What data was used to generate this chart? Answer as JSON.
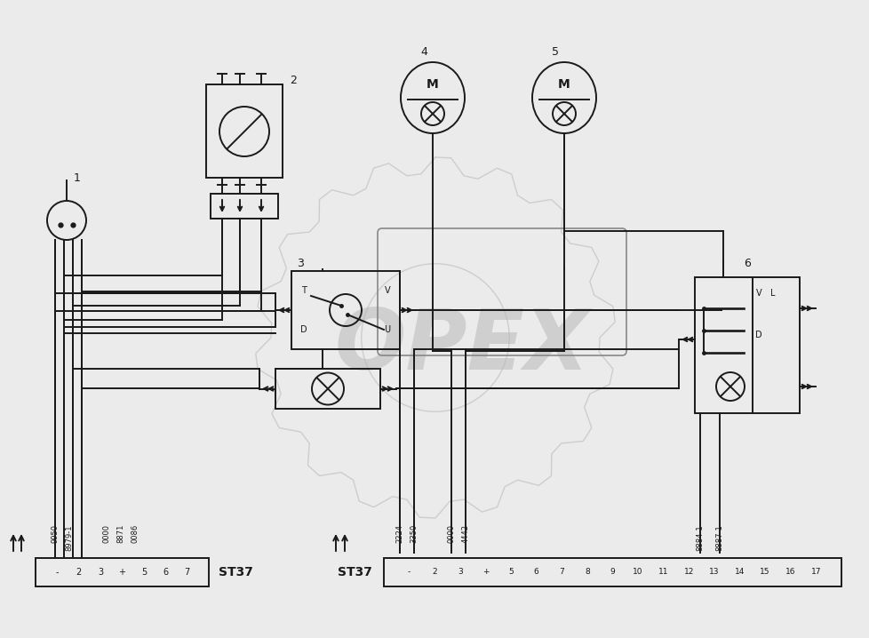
{
  "bg_color": "#ebebeb",
  "line_color": "#1a1a1a",
  "watermark_text": "OPEX",
  "connector_left_label": "ST37",
  "connector_right_label": "ST37",
  "connector_left_pins": [
    "-",
    "2",
    "3",
    "+",
    "5",
    "6",
    "7"
  ],
  "connector_right_pins": [
    "-",
    "2",
    "3",
    "+",
    "5",
    "6",
    "7",
    "8",
    "9",
    "10",
    "11",
    "12",
    "13",
    "14",
    "15",
    "16",
    "17"
  ],
  "wire_labels_left": [
    [
      "9950",
      62
    ],
    [
      "8979-1",
      78
    ],
    [
      "0000",
      120
    ],
    [
      "8871",
      136
    ],
    [
      "0086",
      152
    ]
  ],
  "wire_labels_right": [
    [
      "2224",
      450
    ],
    [
      "3350",
      466
    ],
    [
      "0000",
      508
    ],
    [
      "4442",
      524
    ],
    [
      "8884-1",
      788
    ],
    [
      "8887-1",
      810
    ]
  ]
}
